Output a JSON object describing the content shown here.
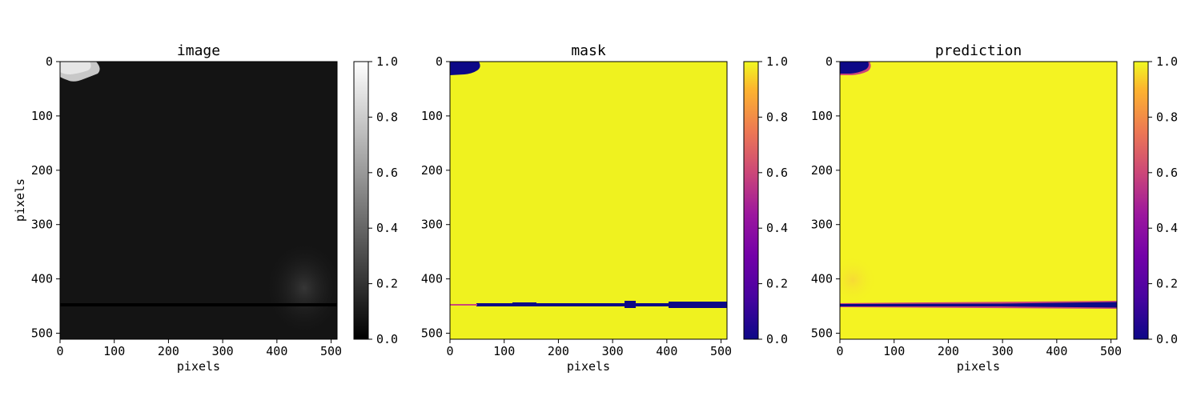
{
  "chart_data": [
    {
      "type": "heatmap",
      "title": "image",
      "xlabel": "pixels",
      "ylabel": "pixels",
      "xlim": [
        0,
        511
      ],
      "ylim": [
        511,
        0
      ],
      "xticks": [
        0,
        100,
        200,
        300,
        400,
        500
      ],
      "yticks": [
        0,
        100,
        200,
        300,
        400,
        500
      ],
      "colormap": "gray",
      "colorbar": {
        "range": [
          0.0,
          1.0
        ],
        "ticks": [
          "0.0",
          "0.2",
          "0.4",
          "0.6",
          "0.8",
          "1.0"
        ]
      },
      "content": {
        "background_value": 0.08,
        "bright_patch_top_left_value": 0.85,
        "horizontal_dark_line": {
          "y": 450,
          "value": 0.0
        },
        "faint_texture_region_x": [
          390,
          511
        ],
        "faint_texture_region_y": [
          340,
          470
        ]
      }
    },
    {
      "type": "heatmap",
      "title": "mask",
      "xlabel": "pixels",
      "ylabel": "",
      "xlim": [
        0,
        511
      ],
      "ylim": [
        511,
        0
      ],
      "xticks": [
        0,
        100,
        200,
        300,
        400,
        500
      ],
      "yticks": [
        0,
        100,
        200,
        300,
        400,
        500
      ],
      "colormap": "plasma",
      "colorbar": {
        "range": [
          0.0,
          1.0
        ],
        "ticks": [
          "0.0",
          "0.2",
          "0.4",
          "0.6",
          "0.8",
          "1.0"
        ]
      },
      "content": {
        "background_value": 1.0,
        "region_zero_top_left": {
          "x": [
            0,
            55
          ],
          "y": [
            0,
            25
          ]
        },
        "horizontal_band": {
          "y": 450,
          "value": 0.0,
          "x": [
            0,
            511
          ]
        }
      }
    },
    {
      "type": "heatmap",
      "title": "prediction",
      "xlabel": "pixels",
      "ylabel": "",
      "xlim": [
        0,
        511
      ],
      "ylim": [
        511,
        0
      ],
      "xticks": [
        0,
        100,
        200,
        300,
        400,
        500
      ],
      "yticks": [
        0,
        100,
        200,
        300,
        400,
        500
      ],
      "colormap": "plasma",
      "colorbar": {
        "range": [
          0.0,
          1.0
        ],
        "ticks": [
          "0.0",
          "0.2",
          "0.4",
          "0.6",
          "0.8",
          "1.0"
        ]
      },
      "content": {
        "background_value": 1.0,
        "region_zero_top_left": {
          "x": [
            0,
            55
          ],
          "y": [
            0,
            25
          ]
        },
        "horizontal_band": {
          "y": 450,
          "value": 0.0,
          "x": [
            0,
            511
          ]
        }
      }
    }
  ],
  "colors": {
    "plasma_low": "#0d0887",
    "plasma_mid": "#cc4778",
    "plasma_high": "#f0f921",
    "mask_fill": "#eff21f",
    "prediction_fill": "#f4f322",
    "image_bg": "#141414"
  }
}
